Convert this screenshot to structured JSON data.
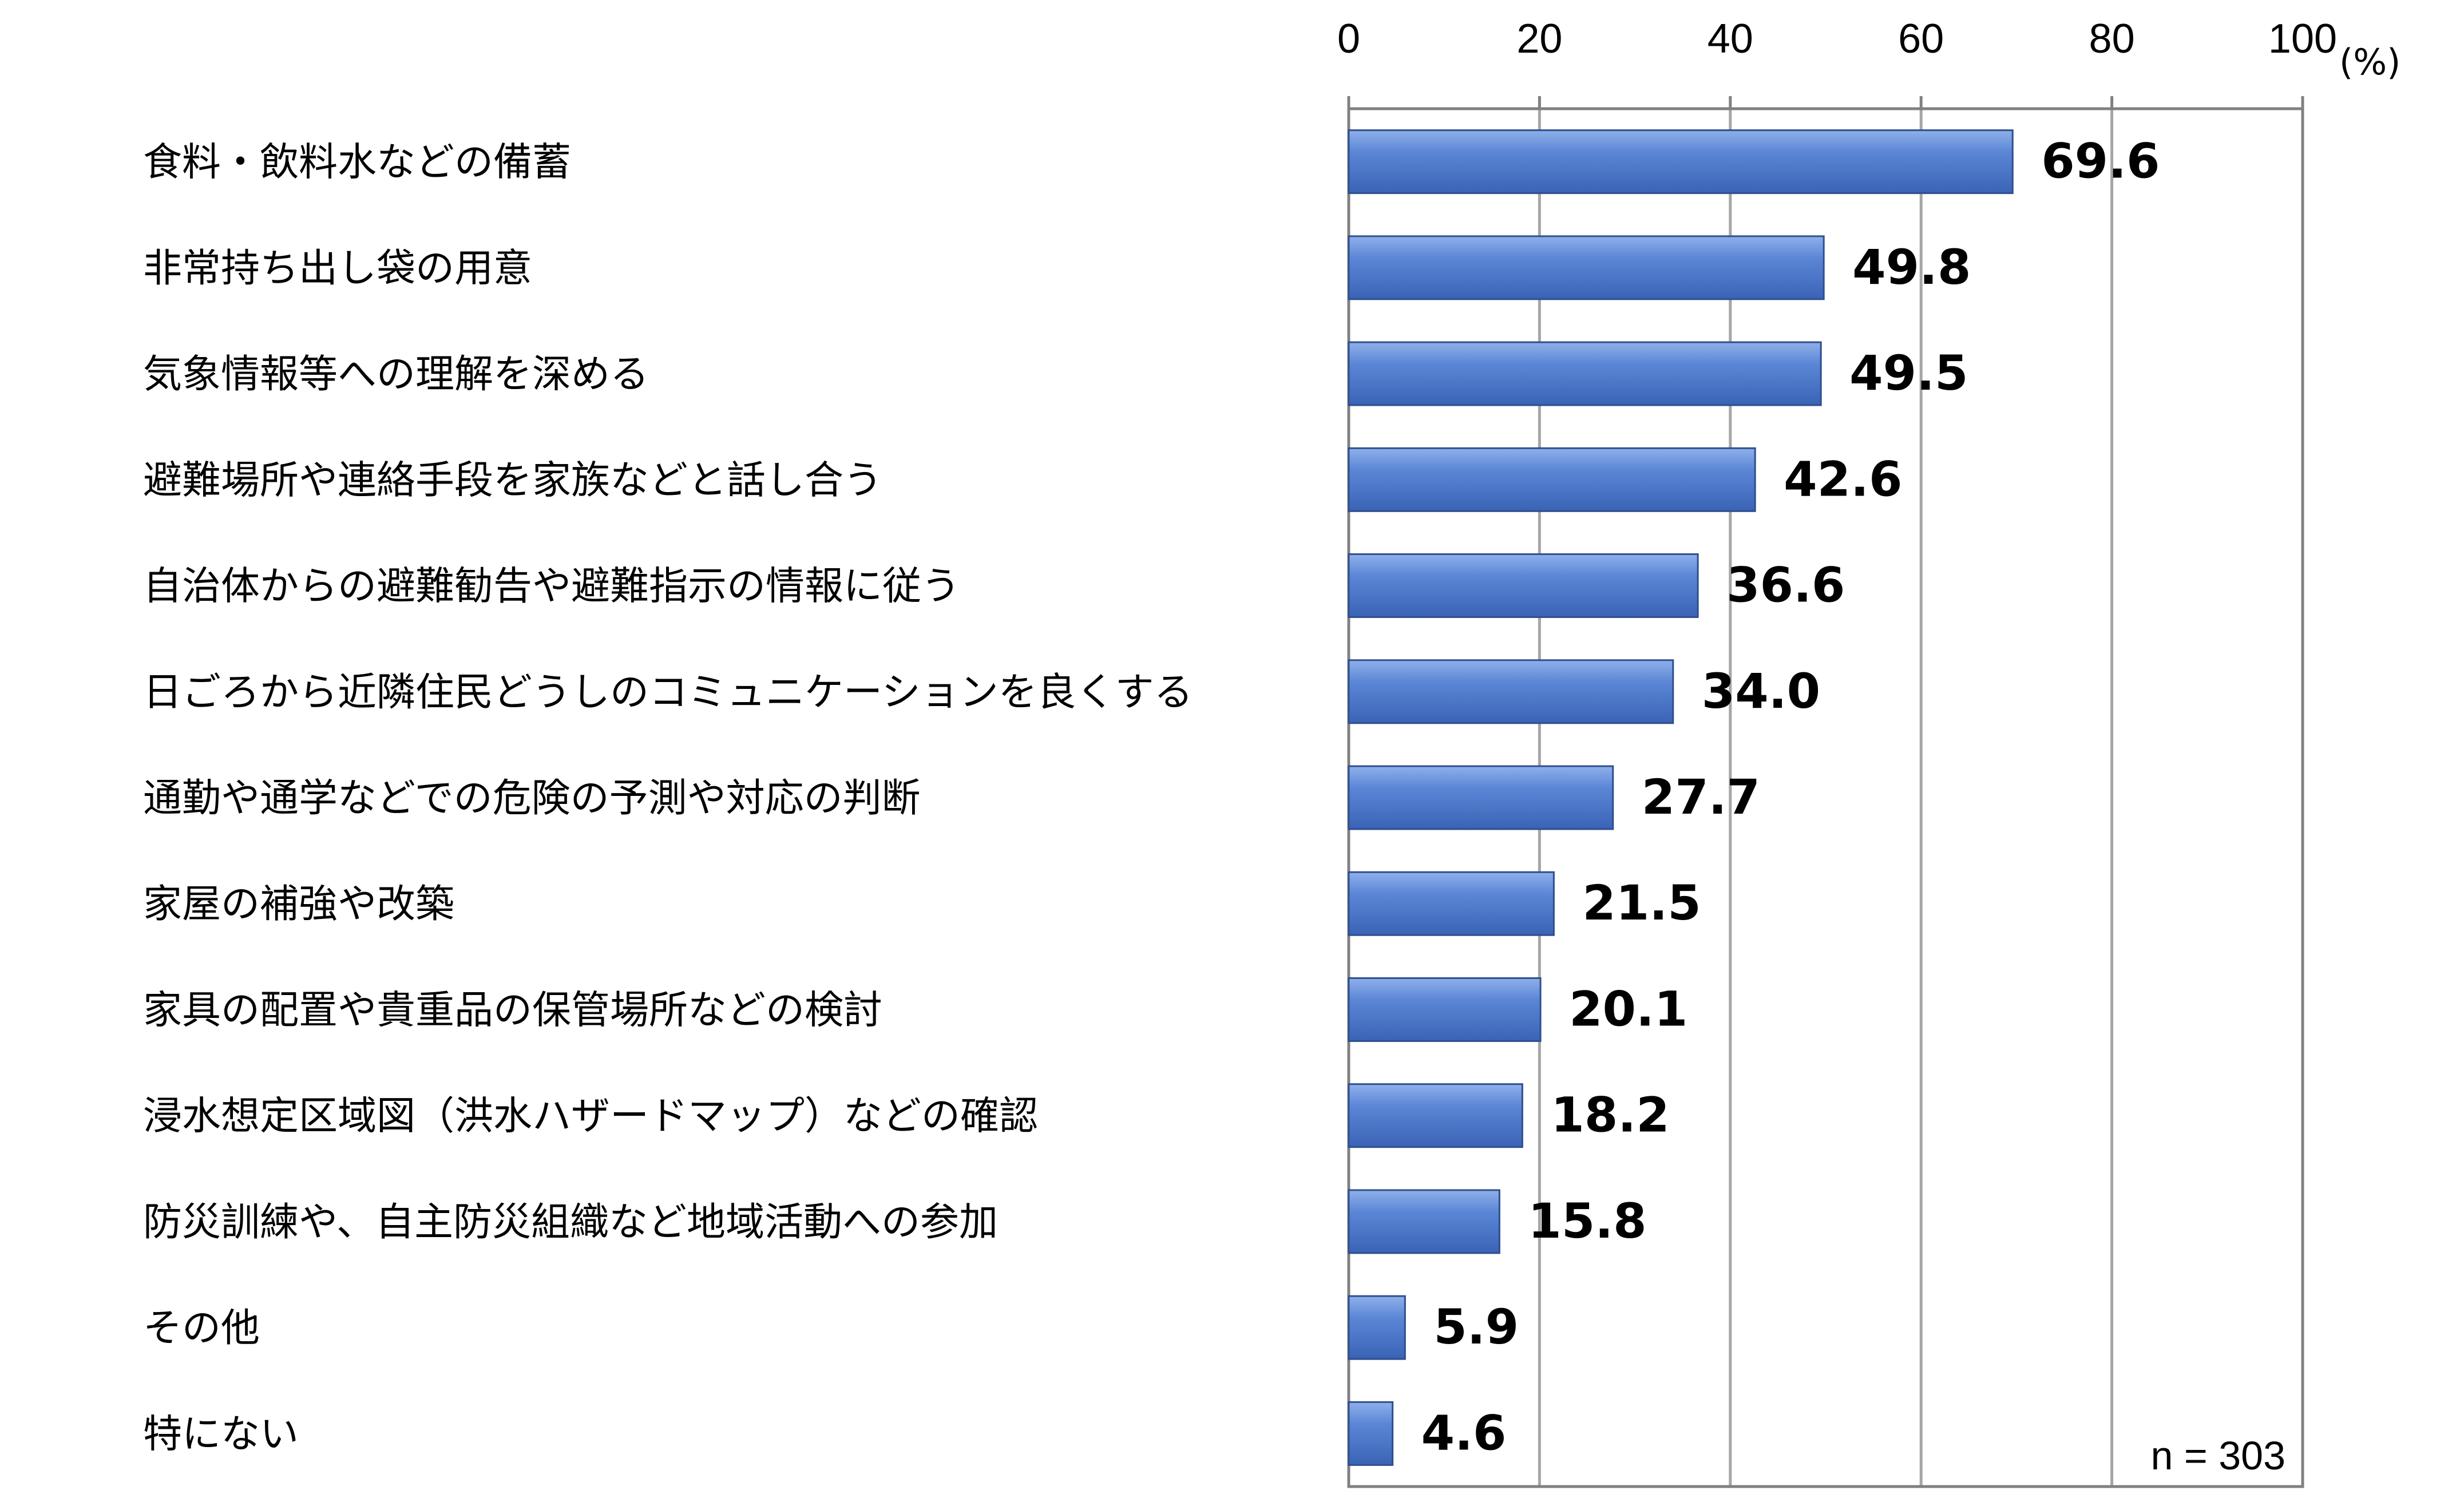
{
  "chart_data": {
    "type": "bar",
    "orientation": "horizontal",
    "title": "",
    "xlabel": "",
    "ylabel": "",
    "unit": "(%)",
    "xlim": [
      0,
      100
    ],
    "xticks": [
      0,
      20,
      40,
      60,
      80,
      100
    ],
    "grid": true,
    "bar_color": "#4472C4",
    "categories": [
      "食料・飲料水などの備蓄",
      "非常持ち出し袋の用意",
      "気象情報等への理解を深める",
      "避難場所や連絡手段を家族などと話し合う",
      "自治体からの避難勧告や避難指示の情報に従う",
      "日ごろから近隣住民どうしのコミュニケーションを良くする",
      "通勤や通学などでの危険の予測や対応の判断",
      "家屋の補強や改築",
      "家具の配置や貴重品の保管場所などの検討",
      "浸水想定区域図（洪水ハザードマップ）などの確認",
      "防災訓練や、自主防災組織など地域活動への参加",
      "その他",
      "特にない"
    ],
    "values": [
      69.6,
      49.8,
      49.5,
      42.6,
      36.6,
      34.0,
      27.7,
      21.5,
      20.1,
      18.2,
      15.8,
      5.9,
      4.6
    ],
    "value_labels": [
      "69.6",
      "49.8",
      "49.5",
      "42.6",
      "36.6",
      "34.0",
      "27.7",
      "21.5",
      "20.1",
      "18.2",
      "15.8",
      "5.9",
      "4.6"
    ],
    "sample_note": "n = 303"
  }
}
